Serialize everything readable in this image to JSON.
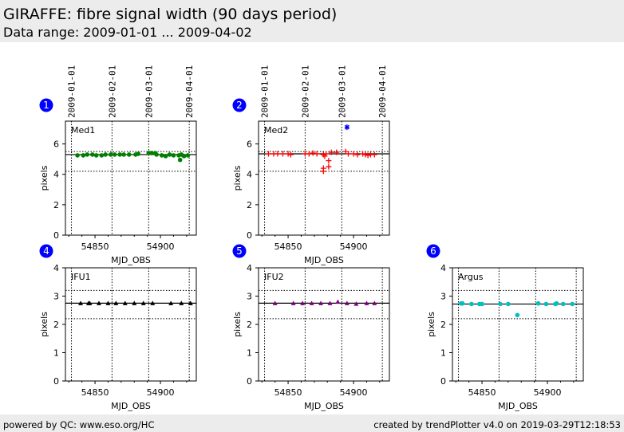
{
  "header": {
    "title": "GIRAFFE: fibre signal width (90 days period)",
    "subtitle": "Data range: 2009-01-01 ... 2009-04-02"
  },
  "footer": {
    "left": "powered by QC: www.eso.org/HC",
    "right": "created by trendPlotter v4.0 on 2019-03-29T12:18:53"
  },
  "date_ticks": {
    "labels": [
      "2009-01-01",
      "2009-02-01",
      "2009-03-01",
      "2009-04-01"
    ],
    "mjd": [
      54832,
      54863,
      54891,
      54922
    ]
  },
  "chart_data": [
    {
      "type": "scatter",
      "panel": "1",
      "label": "Med1",
      "xlabel": "MJD_OBS",
      "ylabel": "pixels",
      "xlim": [
        54827.4,
        54927.4
      ],
      "ylim": [
        0,
        7.5
      ],
      "yticks": [
        0,
        2,
        4,
        6
      ],
      "xticks": [
        54850,
        54900
      ],
      "mean": 5.3,
      "limits": [
        5.5,
        4.2
      ],
      "color": "#008000",
      "marker": "dot",
      "x": [
        54836.6,
        54841,
        54844,
        54848,
        54851,
        54855,
        54858,
        54862,
        54865,
        54869,
        54872,
        54876,
        54881,
        54883,
        54891,
        54893,
        54896,
        54897,
        54901,
        54904,
        54907,
        54910,
        54914,
        54915,
        54916,
        54918,
        54921
      ],
      "y": [
        5.25,
        5.25,
        5.3,
        5.3,
        5.25,
        5.25,
        5.3,
        5.3,
        5.3,
        5.3,
        5.3,
        5.3,
        5.3,
        5.35,
        5.4,
        5.4,
        5.4,
        5.3,
        5.25,
        5.2,
        5.3,
        5.25,
        5.25,
        4.95,
        5.3,
        5.2,
        5.25
      ]
    },
    {
      "type": "scatter",
      "panel": "2",
      "label": "Med2",
      "xlabel": "MJD_OBS",
      "ylabel": "pixels",
      "xlim": [
        54827.4,
        54927.4
      ],
      "ylim": [
        0,
        7.5
      ],
      "yticks": [
        0,
        2,
        4,
        6
      ],
      "xticks": [
        54850,
        54900
      ],
      "mean": 5.35,
      "limits": [
        5.5,
        4.2
      ],
      "color": "#ff0000",
      "marker": "plus",
      "x": [
        54835,
        54839,
        54842,
        54846,
        54850,
        54852,
        54863,
        54866,
        54869,
        54872,
        54877,
        54877,
        54877,
        54878,
        54879,
        54881,
        54881,
        54883,
        54887,
        54894,
        54896,
        54900,
        54903,
        54907,
        54909,
        54911,
        54913,
        54916
      ],
      "y": [
        5.35,
        5.35,
        5.35,
        5.35,
        5.35,
        5.3,
        5.35,
        5.35,
        5.4,
        5.35,
        5.3,
        4.4,
        4.2,
        5.2,
        5.35,
        4.9,
        4.5,
        5.45,
        5.45,
        5.5,
        5.35,
        5.35,
        5.3,
        5.35,
        5.3,
        5.25,
        5.3,
        5.3
      ],
      "outliers": {
        "x": [
          54895
        ],
        "y": [
          7.1
        ],
        "color": "#0000ff"
      }
    },
    {
      "type": "scatter",
      "panel": "4",
      "label": "IFU1",
      "xlabel": "MJD_OBS",
      "ylabel": "pixels",
      "xlim": [
        54827.4,
        54927.4
      ],
      "ylim": [
        0,
        4
      ],
      "yticks": [
        0,
        1,
        2,
        3,
        4
      ],
      "xticks": [
        54850,
        54900
      ],
      "mean": 2.75,
      "limits": [
        3.2,
        2.2
      ],
      "color": "#000000",
      "marker": "tri",
      "x": [
        54839,
        54845,
        54846,
        54853,
        54860,
        54866,
        54873,
        54880,
        54887,
        54894,
        54908,
        54916,
        54923
      ],
      "y": [
        2.75,
        2.75,
        2.75,
        2.75,
        2.75,
        2.75,
        2.75,
        2.75,
        2.75,
        2.75,
        2.75,
        2.75,
        2.75
      ]
    },
    {
      "type": "scatter",
      "panel": "5",
      "label": "IFU2",
      "xlabel": "MJD_OBS",
      "ylabel": "pixels",
      "xlim": [
        54827.4,
        54927.4
      ],
      "ylim": [
        0,
        4
      ],
      "yticks": [
        0,
        1,
        2,
        3,
        4
      ],
      "xticks": [
        54850,
        54900
      ],
      "mean": 2.75,
      "limits": [
        3.2,
        2.2
      ],
      "color": "#800080",
      "marker": "tri",
      "x": [
        54840,
        54854,
        54861,
        54868,
        54875,
        54882,
        54888,
        54895,
        54902,
        54910,
        54916
      ],
      "y": [
        2.75,
        2.75,
        2.75,
        2.75,
        2.75,
        2.75,
        2.8,
        2.75,
        2.73,
        2.75,
        2.75
      ]
    },
    {
      "type": "scatter",
      "panel": "6",
      "label": "Argus",
      "xlabel": "MJD_OBS",
      "ylabel": "pixels",
      "xlim": [
        54827.4,
        54927.4
      ],
      "ylim": [
        0,
        4
      ],
      "yticks": [
        0,
        1,
        2,
        3,
        4
      ],
      "xticks": [
        54850,
        54900
      ],
      "mean": 2.72,
      "limits": [
        3.2,
        2.2
      ],
      "color": "#00bfbf",
      "marker": "dot",
      "x": [
        54834,
        54835,
        54842,
        54848,
        54850,
        54864,
        54870,
        54877,
        54893,
        54899,
        54906,
        54907,
        54912,
        54919
      ],
      "y": [
        2.74,
        2.74,
        2.72,
        2.72,
        2.72,
        2.72,
        2.72,
        2.33,
        2.74,
        2.72,
        2.72,
        2.74,
        2.72,
        2.72
      ]
    }
  ]
}
